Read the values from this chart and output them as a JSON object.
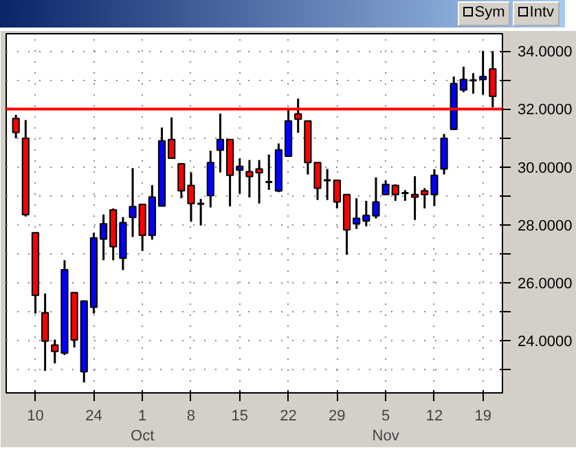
{
  "chart_data": {
    "type": "candlestick",
    "categories": [
      null,
      null,
      "10",
      null,
      null,
      null,
      null,
      null,
      "24",
      null,
      null,
      null,
      null,
      "1\nOct",
      null,
      null,
      null,
      null,
      "8",
      null,
      null,
      null,
      null,
      "15",
      null,
      null,
      null,
      null,
      "22",
      null,
      null,
      null,
      null,
      "29",
      null,
      null,
      null,
      null,
      "5\nNov",
      null,
      null,
      null,
      null,
      "12",
      null,
      null,
      null,
      null,
      "19",
      null
    ],
    "ohlc": [
      [
        31.67,
        31.8,
        30.99,
        31.19
      ],
      [
        30.99,
        31.62,
        28.29,
        28.35
      ],
      [
        27.73,
        27.73,
        24.94,
        25.57
      ],
      [
        24.97,
        25.63,
        22.96,
        23.99
      ],
      [
        23.85,
        24.04,
        23.22,
        23.63
      ],
      [
        23.57,
        26.78,
        23.51,
        26.45
      ],
      [
        25.66,
        25.66,
        23.77,
        24.03
      ],
      [
        22.93,
        25.37,
        22.56,
        25.37
      ],
      [
        25.16,
        27.73,
        24.94,
        27.55
      ],
      [
        27.51,
        28.36,
        26.78,
        28.04
      ],
      [
        28.52,
        28.57,
        26.78,
        27.25
      ],
      [
        26.85,
        28.27,
        26.44,
        28.08
      ],
      [
        28.26,
        29.96,
        27.58,
        28.63
      ],
      [
        28.71,
        28.71,
        27.1,
        27.64
      ],
      [
        27.64,
        29.37,
        27.49,
        28.96
      ],
      [
        28.65,
        31.36,
        28.65,
        30.9
      ],
      [
        30.95,
        31.71,
        30.3,
        30.3
      ],
      [
        30.11,
        30.11,
        28.92,
        29.18
      ],
      [
        29.36,
        29.81,
        28.11,
        28.74
      ],
      [
        28.73,
        28.9,
        27.98,
        28.73
      ],
      [
        29.01,
        30.56,
        28.6,
        30.15
      ],
      [
        30.58,
        31.84,
        29.81,
        30.95
      ],
      [
        30.95,
        30.95,
        28.64,
        29.71
      ],
      [
        29.89,
        30.3,
        29.08,
        30.02
      ],
      [
        29.84,
        30.24,
        28.95,
        29.67
      ],
      [
        29.93,
        30.24,
        28.74,
        29.8
      ],
      [
        29.48,
        30.43,
        29.21,
        29.48
      ],
      [
        29.17,
        30.81,
        29.13,
        30.59
      ],
      [
        30.37,
        31.99,
        30.37,
        31.59
      ],
      [
        31.83,
        32.36,
        31.18,
        31.65
      ],
      [
        31.59,
        31.59,
        29.74,
        30.15
      ],
      [
        30.15,
        30.15,
        28.86,
        29.27
      ],
      [
        29.54,
        29.93,
        28.86,
        29.54
      ],
      [
        29.54,
        29.54,
        28.57,
        28.79
      ],
      [
        29.05,
        29.05,
        26.97,
        27.83
      ],
      [
        28.04,
        28.92,
        27.86,
        28.23
      ],
      [
        28.13,
        28.83,
        27.95,
        28.33
      ],
      [
        28.31,
        29.64,
        28.22,
        28.79
      ],
      [
        29.05,
        29.54,
        29.05,
        29.4
      ],
      [
        29.36,
        29.4,
        28.83,
        29.05
      ],
      [
        29.1,
        29.2,
        28.83,
        29.1
      ],
      [
        29.05,
        29.68,
        28.17,
        28.96
      ],
      [
        29.18,
        29.27,
        28.57,
        29.05
      ],
      [
        29.05,
        29.92,
        28.65,
        29.71
      ],
      [
        29.93,
        31.14,
        29.74,
        30.99
      ],
      [
        31.3,
        33.12,
        31.3,
        32.88
      ],
      [
        32.66,
        33.46,
        32.58,
        33.02
      ],
      [
        32.99,
        33.24,
        32.53,
        32.99
      ],
      [
        33.02,
        34.0,
        32.5,
        33.12
      ],
      [
        33.38,
        34.0,
        32.06,
        32.44
      ]
    ],
    "colors": [
      "#ff0000",
      "#ff0000",
      "#ff0000",
      "#ff0000",
      "#ff0000",
      "#0000ff",
      "#ff0000",
      "#0000ff",
      "#0000ff",
      "#0000ff",
      "#ff0000",
      "#0000ff",
      "#0000ff",
      "#ff0000",
      "#0000ff",
      "#0000ff",
      "#ff0000",
      "#ff0000",
      "#ff0000",
      "#000000",
      "#0000ff",
      "#0000ff",
      "#ff0000",
      "#0000ff",
      "#ff0000",
      "#ff0000",
      "#000000",
      "#0000ff",
      "#0000ff",
      "#ff0000",
      "#ff0000",
      "#ff0000",
      "#000000",
      "#ff0000",
      "#ff0000",
      "#0000ff",
      "#0000ff",
      "#0000ff",
      "#0000ff",
      "#ff0000",
      "#000000",
      "#ff0000",
      "#ff0000",
      "#0000ff",
      "#0000ff",
      "#0000ff",
      "#0000ff",
      "#000000",
      "#0000ff",
      "#ff0000"
    ],
    "ylim": [
      22.2,
      34.6
    ],
    "yticks": [
      {
        "value": 23,
        "label": null
      },
      {
        "value": 24,
        "label": "24.0000"
      },
      {
        "value": 25,
        "label": null
      },
      {
        "value": 26,
        "label": "26.0000"
      },
      {
        "value": 27,
        "label": null
      },
      {
        "value": 28,
        "label": "28.0000"
      },
      {
        "value": 29,
        "label": null
      },
      {
        "value": 30,
        "label": "30.0000"
      },
      {
        "value": 31,
        "label": null
      },
      {
        "value": 32,
        "label": "32.0000"
      },
      {
        "value": 33,
        "label": null
      },
      {
        "value": 34,
        "label": "34.0000"
      }
    ],
    "grid": true,
    "ref_lines": [
      {
        "axis": "y",
        "value": 32,
        "color": "#ff0000"
      }
    ],
    "annotations": [
      "Sym",
      "Intv"
    ]
  }
}
